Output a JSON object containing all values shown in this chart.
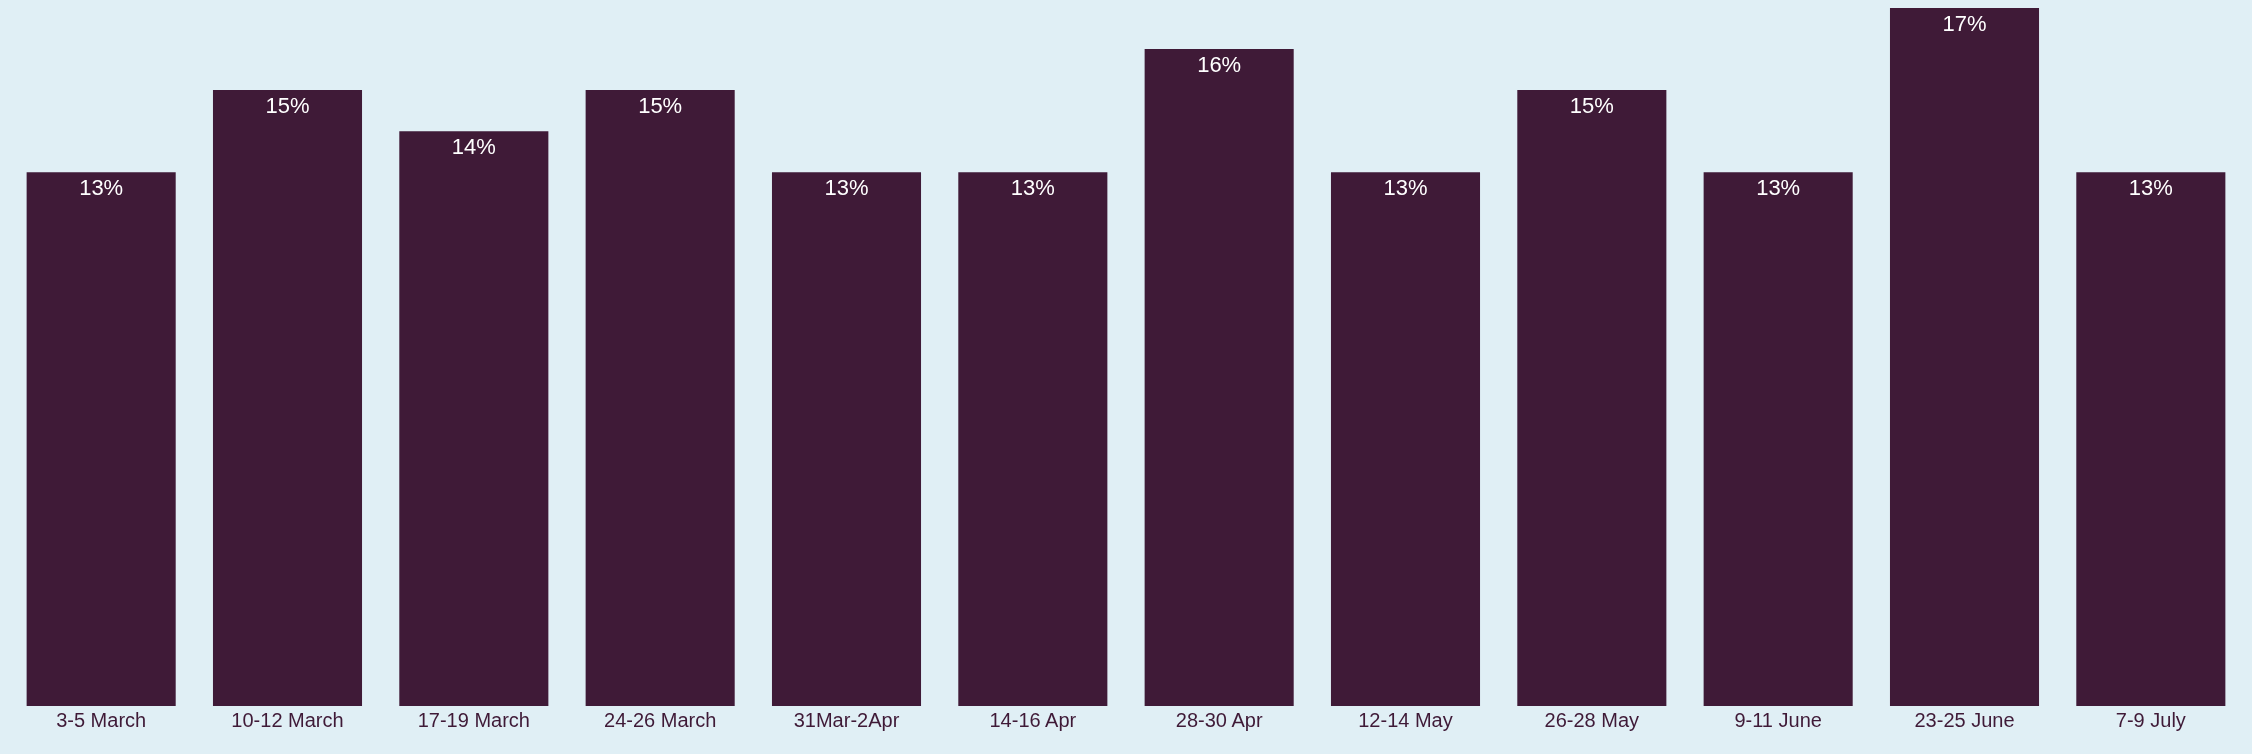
{
  "chart_data": {
    "type": "bar",
    "categories": [
      "3-5 March",
      "10-12 March",
      "17-19 March",
      "24-26 March",
      "31Mar-2Apr",
      "14-16 Apr",
      "28-30 Apr",
      "12-14 May",
      "26-28 May",
      "9-11 June",
      "23-25 June",
      "7-9 July"
    ],
    "values": [
      13,
      15,
      14,
      15,
      13,
      13,
      16,
      13,
      15,
      13,
      17,
      13
    ],
    "value_labels": [
      "13%",
      "15%",
      "14%",
      "15%",
      "13%",
      "13%",
      "16%",
      "13%",
      "15%",
      "13%",
      "17%",
      "13%"
    ],
    "color": "#3f1a37",
    "grid": false,
    "legend": false
  }
}
